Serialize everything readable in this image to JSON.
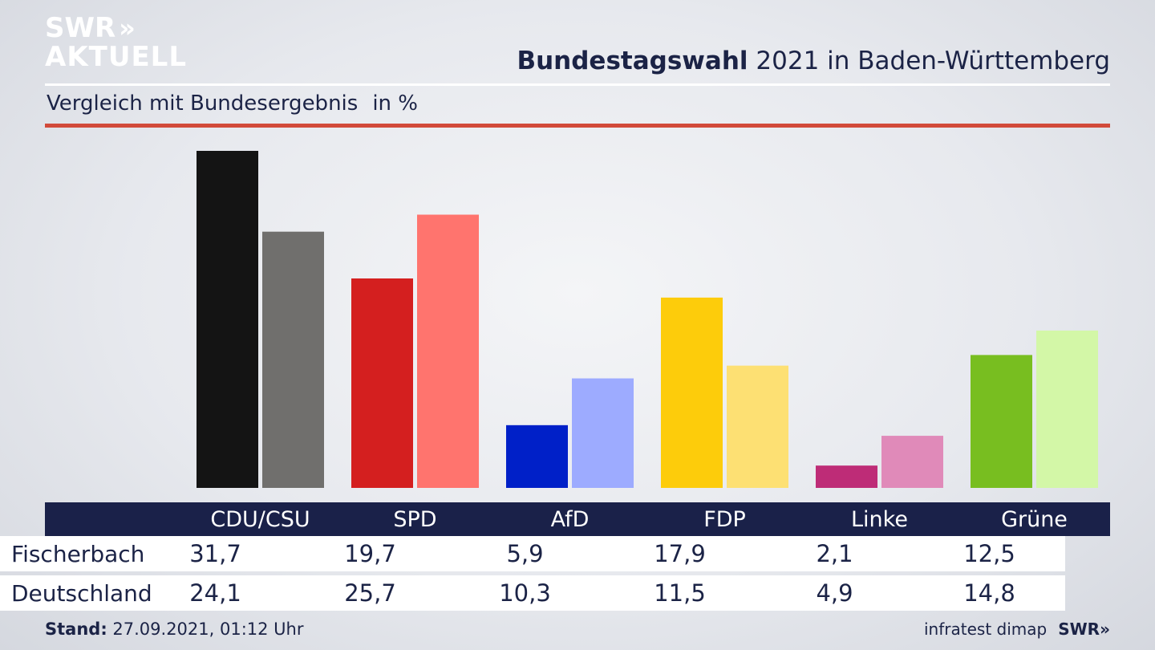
{
  "brand": {
    "line1": "SWR",
    "line2": "AKTUELL",
    "chevrons": "»",
    "footer_logo": "SWR»"
  },
  "header": {
    "title_bold": "Bundestagswahl",
    "title_rest": " 2021 in Baden-Württemberg",
    "subtitle": "Vergleich mit Bundesergebnis",
    "unit": "in %"
  },
  "chart_data": {
    "type": "bar",
    "categories": [
      "CDU/CSU",
      "SPD",
      "AfD",
      "FDP",
      "Linke",
      "Grüne"
    ],
    "series": [
      {
        "name": "Fischerbach",
        "values": [
          31.7,
          19.7,
          5.9,
          17.9,
          2.1,
          12.5
        ],
        "colors": [
          "#141414",
          "#d41f1f",
          "#0020c8",
          "#fdcc0b",
          "#be2c77",
          "#78be20"
        ]
      },
      {
        "name": "Deutschland",
        "values": [
          24.1,
          25.7,
          10.3,
          11.5,
          4.9,
          14.8
        ],
        "colors": [
          "#706f6d",
          "#ff746e",
          "#9dabff",
          "#fde073",
          "#e08ab9",
          "#d3f7a7"
        ]
      }
    ],
    "value_labels": [
      [
        "31,7",
        "19,7",
        "5,9",
        "17,9",
        "2,1",
        "12,5"
      ],
      [
        "24,1",
        "25,7",
        "10,3",
        "11,5",
        "4,9",
        "14,8"
      ]
    ],
    "ylim": [
      0,
      31.7
    ],
    "grid": false,
    "legend": "table-below"
  },
  "footer": {
    "stand_label": "Stand:",
    "stand_value": " 27.09.2021, 01:12 Uhr",
    "source": "infratest dimap"
  },
  "colors": {
    "navy": "#1a2149",
    "accent_red": "#d24a3a"
  }
}
